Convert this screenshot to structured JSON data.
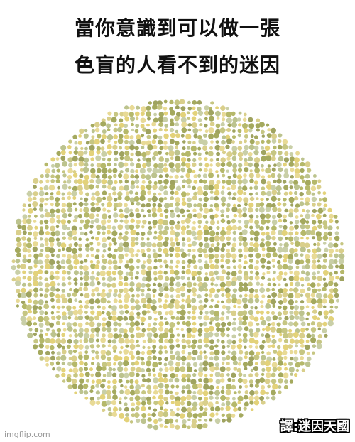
{
  "caption": {
    "line1": "當你意識到可以做一張",
    "line2": "色盲的人看不到的迷因"
  },
  "plate": {
    "colors": [
      "#b5b86a",
      "#c6c682",
      "#a4a95e",
      "#e3d27a",
      "#d9cf8b",
      "#c9cfa7",
      "#9fa360",
      "#bcc38e",
      "#e8da96"
    ]
  },
  "credit": "譯:迷因天國",
  "watermark": "imgflip.com"
}
